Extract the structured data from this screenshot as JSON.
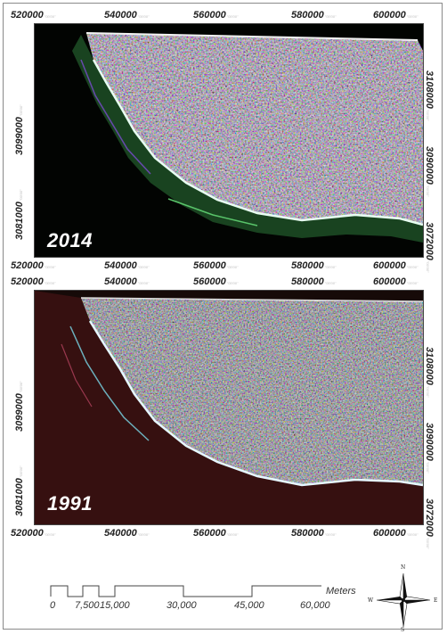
{
  "panel_top": {
    "year": "2014",
    "x_ticks": [
      "520000",
      "540000",
      "560000",
      "580000",
      "600000"
    ],
    "y_left": [
      "3099000",
      "3081000"
    ],
    "y_right": [
      "3108000",
      "3090000",
      "3072000"
    ]
  },
  "panel_bottom": {
    "year": "1991",
    "x_ticks": [
      "520000",
      "540000",
      "560000",
      "580000",
      "600000"
    ],
    "y_left": [
      "3099000",
      "3081000"
    ],
    "y_right": [
      "3108000",
      "3090000",
      "3072000"
    ]
  },
  "scale_bar": {
    "labels": [
      "0",
      "7,500",
      "15,000",
      "30,000",
      "45,000",
      "60,000"
    ],
    "unit": "Meters"
  },
  "north_arrow": {
    "n": "N",
    "s": "S",
    "e": "E",
    "w": "W"
  },
  "colors": {
    "background": "#000000",
    "land_top": "#1e4d2b",
    "land_bottom": "#4a1616",
    "coastline": "#e6f7ff"
  }
}
